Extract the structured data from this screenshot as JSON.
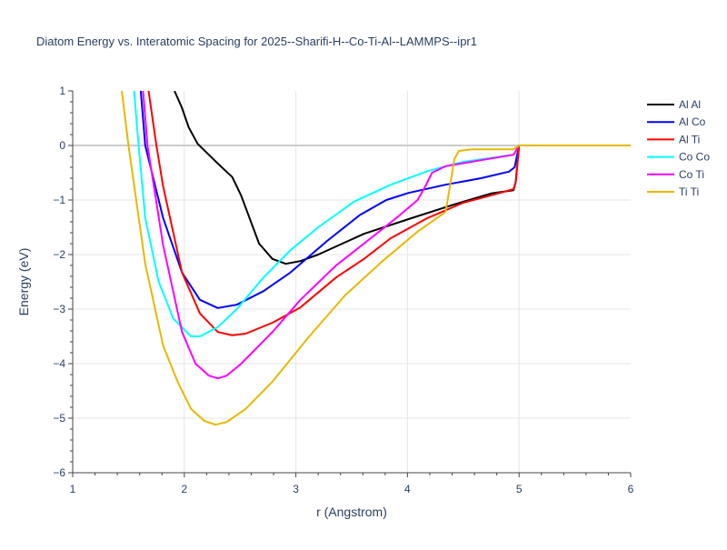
{
  "chart_data": {
    "type": "line",
    "title": "Diatom Energy vs. Interatomic Spacing for 2025--Sharifi-H--Co-Ti-Al--LAMMPS--ipr1",
    "xlabel": "r (Angstrom)",
    "ylabel": "Energy (eV)",
    "xlim": [
      1,
      6
    ],
    "ylim": [
      -6,
      1
    ],
    "xticks": [
      1,
      2,
      3,
      4,
      5,
      6
    ],
    "yticks": [
      1,
      0,
      -1,
      -2,
      -3,
      -4,
      -5,
      -6
    ],
    "ytick_labels": [
      "1",
      "0",
      "−1",
      "−2",
      "−3",
      "−4",
      "−5",
      "−6"
    ],
    "grid": true,
    "legend_position": "right",
    "series": [
      {
        "name": "Al Al",
        "color": "#000000",
        "x": [
          1.912,
          1.977,
          2.04,
          2.12,
          2.3,
          2.43,
          2.51,
          2.67,
          2.79,
          2.91,
          3.04,
          3.2,
          3.61,
          4.01,
          4.42,
          4.75,
          4.95,
          4.97,
          5.0,
          6.0
        ],
        "y": [
          1,
          0.7,
          0.33,
          0.03,
          -0.33,
          -0.58,
          -0.92,
          -1.8,
          -2.08,
          -2.17,
          -2.12,
          -2.0,
          -1.62,
          -1.35,
          -1.08,
          -0.88,
          -0.82,
          -0.67,
          0,
          0
        ]
      },
      {
        "name": "Al Co",
        "color": "#0000ff",
        "x": [
          1.61,
          1.65,
          1.81,
          1.98,
          2.14,
          2.3,
          2.47,
          2.71,
          2.95,
          3.28,
          3.57,
          3.81,
          4.01,
          4.34,
          4.66,
          4.91,
          4.96,
          5.0,
          6.0
        ],
        "y": [
          1,
          0,
          -1.33,
          -2.33,
          -2.83,
          -2.98,
          -2.92,
          -2.67,
          -2.33,
          -1.75,
          -1.28,
          -1.0,
          -0.87,
          -0.72,
          -0.6,
          -0.48,
          -0.4,
          0,
          0
        ]
      },
      {
        "name": "Al Ti",
        "color": "#ff0000",
        "x": [
          1.68,
          1.75,
          1.81,
          1.98,
          2.14,
          2.3,
          2.43,
          2.55,
          2.79,
          3.04,
          3.36,
          3.61,
          3.85,
          4.18,
          4.5,
          4.83,
          4.95,
          4.97,
          5.0,
          6.0
        ],
        "y": [
          1,
          0,
          -0.75,
          -2.33,
          -3.08,
          -3.42,
          -3.48,
          -3.45,
          -3.25,
          -2.97,
          -2.42,
          -2.08,
          -1.7,
          -1.33,
          -1.05,
          -0.87,
          -0.8,
          -0.67,
          0,
          0
        ]
      },
      {
        "name": "Co Co",
        "color": "#00ffff",
        "x": [
          1.55,
          1.59,
          1.65,
          1.77,
          1.9,
          2.06,
          2.14,
          2.3,
          2.47,
          2.71,
          2.95,
          3.2,
          3.52,
          3.85,
          4.18,
          4.5,
          4.95,
          5.0,
          6.0
        ],
        "y": [
          1,
          0,
          -1.33,
          -2.5,
          -3.17,
          -3.5,
          -3.5,
          -3.33,
          -3.0,
          -2.42,
          -1.92,
          -1.5,
          -1.03,
          -0.72,
          -0.47,
          -0.3,
          -0.17,
          0,
          0
        ]
      },
      {
        "name": "Co Ti",
        "color": "#ff00ff",
        "x": [
          1.63,
          1.67,
          1.81,
          1.98,
          2.1,
          2.22,
          2.3,
          2.38,
          2.51,
          2.79,
          3.04,
          3.36,
          3.69,
          3.93,
          4.09,
          4.16,
          4.22,
          4.34,
          4.66,
          4.95,
          5.0,
          6.0
        ],
        "y": [
          1,
          0,
          -1.83,
          -3.42,
          -4.0,
          -4.22,
          -4.27,
          -4.22,
          -4.0,
          -3.42,
          -2.83,
          -2.2,
          -1.67,
          -1.28,
          -1.0,
          -0.75,
          -0.5,
          -0.38,
          -0.27,
          -0.17,
          0,
          0
        ]
      },
      {
        "name": "Ti Ti",
        "color": "#e6b800",
        "x": [
          1.44,
          1.5,
          1.65,
          1.81,
          1.94,
          2.06,
          2.18,
          2.28,
          2.38,
          2.55,
          2.79,
          3.12,
          3.44,
          3.77,
          4.09,
          4.34,
          4.36,
          4.42,
          4.46,
          4.58,
          4.95,
          5.0,
          6.0
        ],
        "y": [
          1,
          0,
          -2.17,
          -3.67,
          -4.33,
          -4.83,
          -5.05,
          -5.12,
          -5.07,
          -4.83,
          -4.33,
          -3.5,
          -2.75,
          -2.13,
          -1.58,
          -1.22,
          -1.0,
          -0.25,
          -0.1,
          -0.07,
          -0.07,
          0,
          0
        ]
      }
    ]
  }
}
